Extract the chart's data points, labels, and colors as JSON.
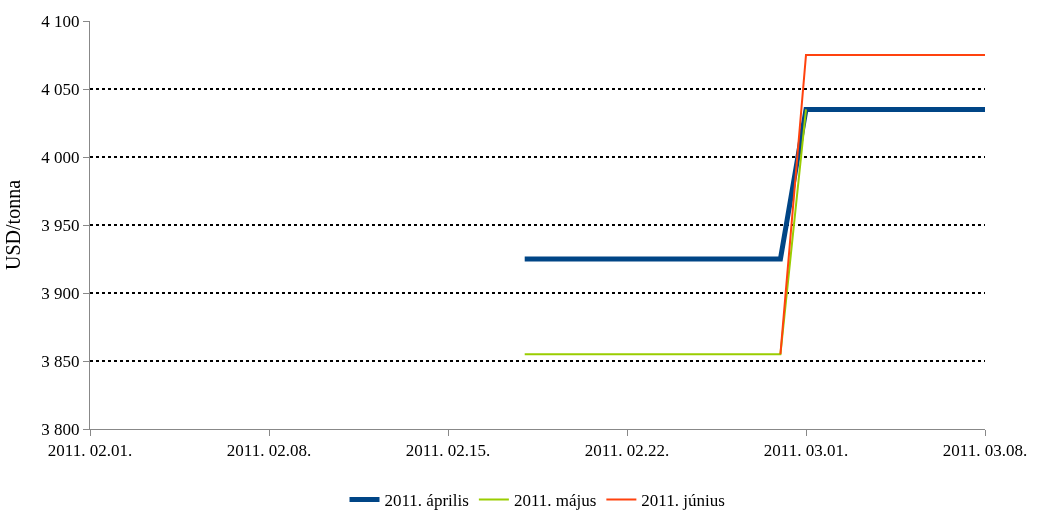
{
  "chart_data": {
    "type": "line",
    "ylabel": "USD/tonna",
    "x": [
      "2011-02-18",
      "2011-02-28",
      "2011-03-01",
      "2011-03-08"
    ],
    "series": [
      {
        "name": "2011. április",
        "color": "#004586",
        "values": [
          3925,
          3925,
          4035,
          4035
        ]
      },
      {
        "name": "2011. május",
        "color": "#9acd00",
        "values": [
          3855,
          3855,
          4035,
          null
        ]
      },
      {
        "name": "2011. június",
        "color": "#ff420e",
        "values": [
          null,
          3855,
          4075,
          4075
        ]
      }
    ],
    "xlim": [
      "2011-02-01",
      "2011-03-08"
    ],
    "xticks": [
      {
        "value": "2011-02-01",
        "label": "2011. 02.01."
      },
      {
        "value": "2011-02-08",
        "label": "2011. 02.08."
      },
      {
        "value": "2011-02-15",
        "label": "2011. 02.15."
      },
      {
        "value": "2011-02-22",
        "label": "2011. 02.22."
      },
      {
        "value": "2011-03-01",
        "label": "2011. 03.01."
      },
      {
        "value": "2011-03-08",
        "label": "2011. 03.08."
      }
    ],
    "ylim": [
      3800,
      4100
    ],
    "yticks": [
      {
        "value": 3800,
        "label": "3 800"
      },
      {
        "value": 3850,
        "label": "3 850"
      },
      {
        "value": 3900,
        "label": "3 900"
      },
      {
        "value": 3950,
        "label": "3 950"
      },
      {
        "value": 4000,
        "label": "4 000"
      },
      {
        "value": 4050,
        "label": "4 050"
      },
      {
        "value": 4100,
        "label": "4 100"
      }
    ],
    "grid": "y",
    "legend": "bottom",
    "marker": "none",
    "line_style": "solid"
  }
}
